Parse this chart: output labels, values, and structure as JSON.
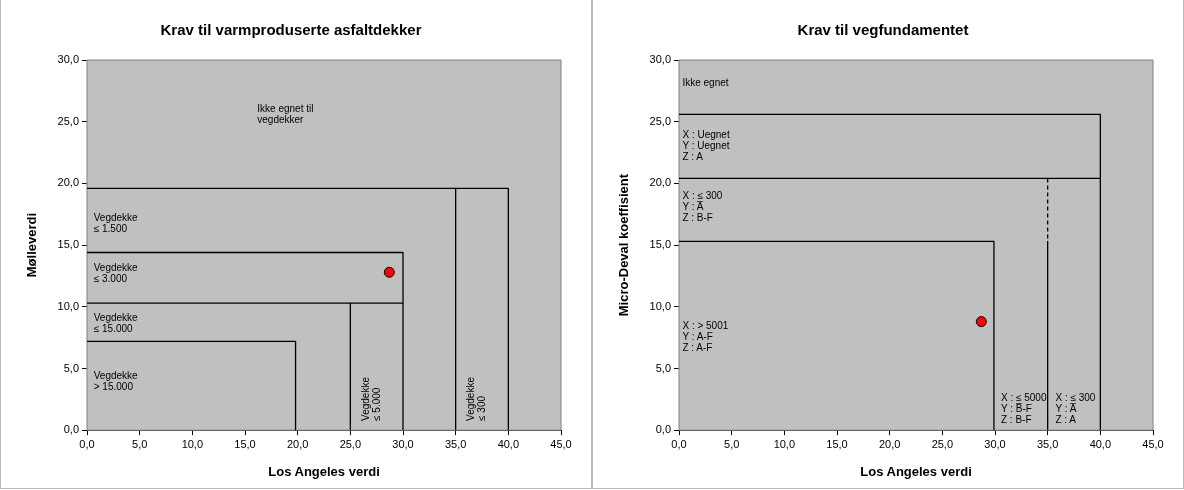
{
  "chart_data": [
    {
      "type": "scatter",
      "title": "Krav til varmproduserte asfaltdekker",
      "xlabel": "Los Angeles verdi",
      "ylabel": "Mølleverdi",
      "xlim": [
        0,
        45
      ],
      "ylim": [
        0,
        30
      ],
      "xticks": [
        {
          "value": 0,
          "label": "0,0"
        },
        {
          "value": 5,
          "label": "5,0"
        },
        {
          "value": 10,
          "label": "10,0"
        },
        {
          "value": 15,
          "label": "15,0"
        },
        {
          "value": 20,
          "label": "20,0"
        },
        {
          "value": 25,
          "label": "25,0"
        },
        {
          "value": 30,
          "label": "30,0"
        },
        {
          "value": 35,
          "label": "35,0"
        },
        {
          "value": 40,
          "label": "40,0"
        },
        {
          "value": 45,
          "label": "45,0"
        }
      ],
      "yticks": [
        {
          "value": 0,
          "label": "0,0"
        },
        {
          "value": 5,
          "label": "5,0"
        },
        {
          "value": 10,
          "label": "10,0"
        },
        {
          "value": 15,
          "label": "15,0"
        },
        {
          "value": 20,
          "label": "20,0"
        },
        {
          "value": 25,
          "label": "25,0"
        },
        {
          "value": 30,
          "label": "30,0"
        }
      ],
      "grid": false,
      "legend": false,
      "series": [
        {
          "type": "line",
          "color": "#000000",
          "x": [
            0,
            40,
            40
          ],
          "values": [
            19.6,
            19.6,
            0
          ]
        },
        {
          "type": "line",
          "color": "#000000",
          "x": [
            35,
            35
          ],
          "values": [
            19.6,
            0
          ]
        },
        {
          "type": "line",
          "color": "#000000",
          "x": [
            0,
            30,
            30
          ],
          "values": [
            14.4,
            14.4,
            0
          ]
        },
        {
          "type": "line",
          "color": "#000000",
          "x": [
            0,
            30
          ],
          "values": [
            10.3,
            10.3
          ]
        },
        {
          "type": "line",
          "color": "#000000",
          "x": [
            25,
            25
          ],
          "values": [
            10.3,
            0
          ]
        },
        {
          "type": "line",
          "color": "#000000",
          "x": [
            0,
            19.8,
            19.8
          ],
          "values": [
            7.2,
            7.2,
            0
          ]
        },
        {
          "type": "scatter",
          "color": "#ff0000",
          "marker": "circle",
          "x": [
            28.7
          ],
          "values": [
            12.8
          ]
        }
      ],
      "annotations": [
        "Ikke egnet til\nvegdekker",
        "Vegdekke\n≤ 1.500",
        "Vegdekke\n≤ 3.000",
        "Vegdekke\n≤ 15.000",
        "Vegdekke\n> 15.000",
        "Vegdekke\n≤ 5.000",
        "Vegdekke\n≤ 300"
      ]
    },
    {
      "type": "scatter",
      "title": "Krav til vegfundamentet",
      "xlabel": "Los Angeles verdi",
      "ylabel": "Micro-Deval koeffisient",
      "xlim": [
        0,
        45
      ],
      "ylim": [
        0,
        30
      ],
      "xticks": [
        {
          "value": 0,
          "label": "0,0"
        },
        {
          "value": 5,
          "label": "5,0"
        },
        {
          "value": 10,
          "label": "10,0"
        },
        {
          "value": 15,
          "label": "15,0"
        },
        {
          "value": 20,
          "label": "20,0"
        },
        {
          "value": 25,
          "label": "25,0"
        },
        {
          "value": 30,
          "label": "30,0"
        },
        {
          "value": 35,
          "label": "35,0"
        },
        {
          "value": 40,
          "label": "40,0"
        },
        {
          "value": 45,
          "label": "45,0"
        }
      ],
      "yticks": [
        {
          "value": 0,
          "label": "0,0"
        },
        {
          "value": 5,
          "label": "5,0"
        },
        {
          "value": 10,
          "label": "10,0"
        },
        {
          "value": 15,
          "label": "15,0"
        },
        {
          "value": 20,
          "label": "20,0"
        },
        {
          "value": 25,
          "label": "25,0"
        },
        {
          "value": 30,
          "label": "30,0"
        }
      ],
      "grid": false,
      "legend": false,
      "series": [
        {
          "type": "line",
          "color": "#000000",
          "x": [
            0,
            40,
            40
          ],
          "values": [
            25.6,
            25.6,
            0
          ]
        },
        {
          "type": "line",
          "color": "#000000",
          "x": [
            0,
            40
          ],
          "values": [
            20.4,
            20.4
          ]
        },
        {
          "type": "line",
          "color": "#000000",
          "line_style": "dashed",
          "x": [
            35,
            35
          ],
          "values": [
            20.4,
            15.3
          ]
        },
        {
          "type": "line",
          "color": "#000000",
          "x": [
            35,
            35
          ],
          "values": [
            15.3,
            0
          ]
        },
        {
          "type": "line",
          "color": "#000000",
          "x": [
            0,
            29.9,
            29.9
          ],
          "values": [
            15.3,
            15.3,
            0
          ]
        },
        {
          "type": "scatter",
          "color": "#ff0000",
          "marker": "circle",
          "x": [
            28.7
          ],
          "values": [
            8.8
          ]
        }
      ],
      "annotations": [
        "Ikke egnet",
        "X : Uegnet\nY : Uegnet\nZ : A",
        "X : ≤ 300\nY : A̅\nZ : B-F",
        "X : > 5001\nY : A-F\nZ : A-F",
        "X : ≤ 5000\nY : B̅-F\nZ : B-F",
        "X : ≤ 300\nY : A̅\nZ : A"
      ]
    }
  ]
}
